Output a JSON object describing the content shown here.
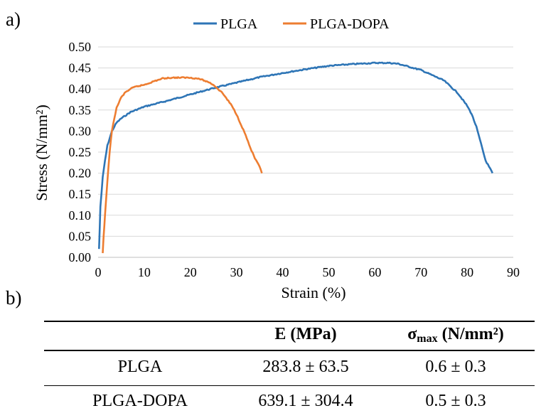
{
  "panels": {
    "a": "a)",
    "b": "b)"
  },
  "chart_data": {
    "type": "line",
    "xlabel": "Strain (%)",
    "ylabel": "Stress (N/mm²)",
    "xlim": [
      0,
      90
    ],
    "ylim": [
      0,
      0.5
    ],
    "xticks": [
      "0",
      "10",
      "20",
      "30",
      "40",
      "50",
      "60",
      "70",
      "80",
      "90"
    ],
    "yticks": [
      "0.00",
      "0.05",
      "0.10",
      "0.15",
      "0.20",
      "0.25",
      "0.30",
      "0.35",
      "0.40",
      "0.45",
      "0.50"
    ],
    "grid": "horizontal",
    "legend_position": "top",
    "series": [
      {
        "name": "PLGA",
        "color": "#2e75b6",
        "x": [
          0.2,
          0.5,
          1,
          1.5,
          2,
          3,
          4,
          5,
          7,
          10,
          15,
          20,
          25,
          30,
          35,
          40,
          45,
          50,
          55,
          60,
          63,
          65,
          70,
          75,
          78,
          80,
          81,
          82,
          83,
          84,
          85,
          85.5
        ],
        "y": [
          0.02,
          0.12,
          0.19,
          0.23,
          0.265,
          0.3,
          0.32,
          0.33,
          0.345,
          0.358,
          0.372,
          0.387,
          0.402,
          0.415,
          0.428,
          0.438,
          0.447,
          0.455,
          0.459,
          0.462,
          0.462,
          0.46,
          0.445,
          0.42,
          0.39,
          0.36,
          0.34,
          0.31,
          0.27,
          0.23,
          0.21,
          0.2
        ]
      },
      {
        "name": "PLGA-DOPA",
        "color": "#ed7d31",
        "x": [
          1,
          1.2,
          1.5,
          2,
          2.5,
          3,
          3.5,
          4,
          5,
          6,
          7,
          8,
          10,
          12,
          14,
          16,
          18,
          20,
          22,
          24,
          25,
          26,
          27,
          28,
          29,
          30,
          31,
          32,
          33,
          34,
          35,
          35.5
        ],
        "y": [
          0.01,
          0.05,
          0.1,
          0.18,
          0.25,
          0.3,
          0.33,
          0.355,
          0.38,
          0.393,
          0.4,
          0.405,
          0.41,
          0.418,
          0.425,
          0.427,
          0.427,
          0.427,
          0.424,
          0.416,
          0.41,
          0.4,
          0.39,
          0.375,
          0.36,
          0.34,
          0.315,
          0.29,
          0.26,
          0.235,
          0.215,
          0.2
        ]
      }
    ]
  },
  "table": {
    "headers": [
      "",
      "E (MPa)",
      "σ",
      "max",
      " (N/mm²)"
    ],
    "rows": [
      [
        "PLGA",
        "283.8 ± 63.5",
        "0.6 ± 0.3"
      ],
      [
        "PLGA-DOPA",
        "639.1 ± 304.4",
        "0.5 ± 0.3"
      ]
    ]
  }
}
